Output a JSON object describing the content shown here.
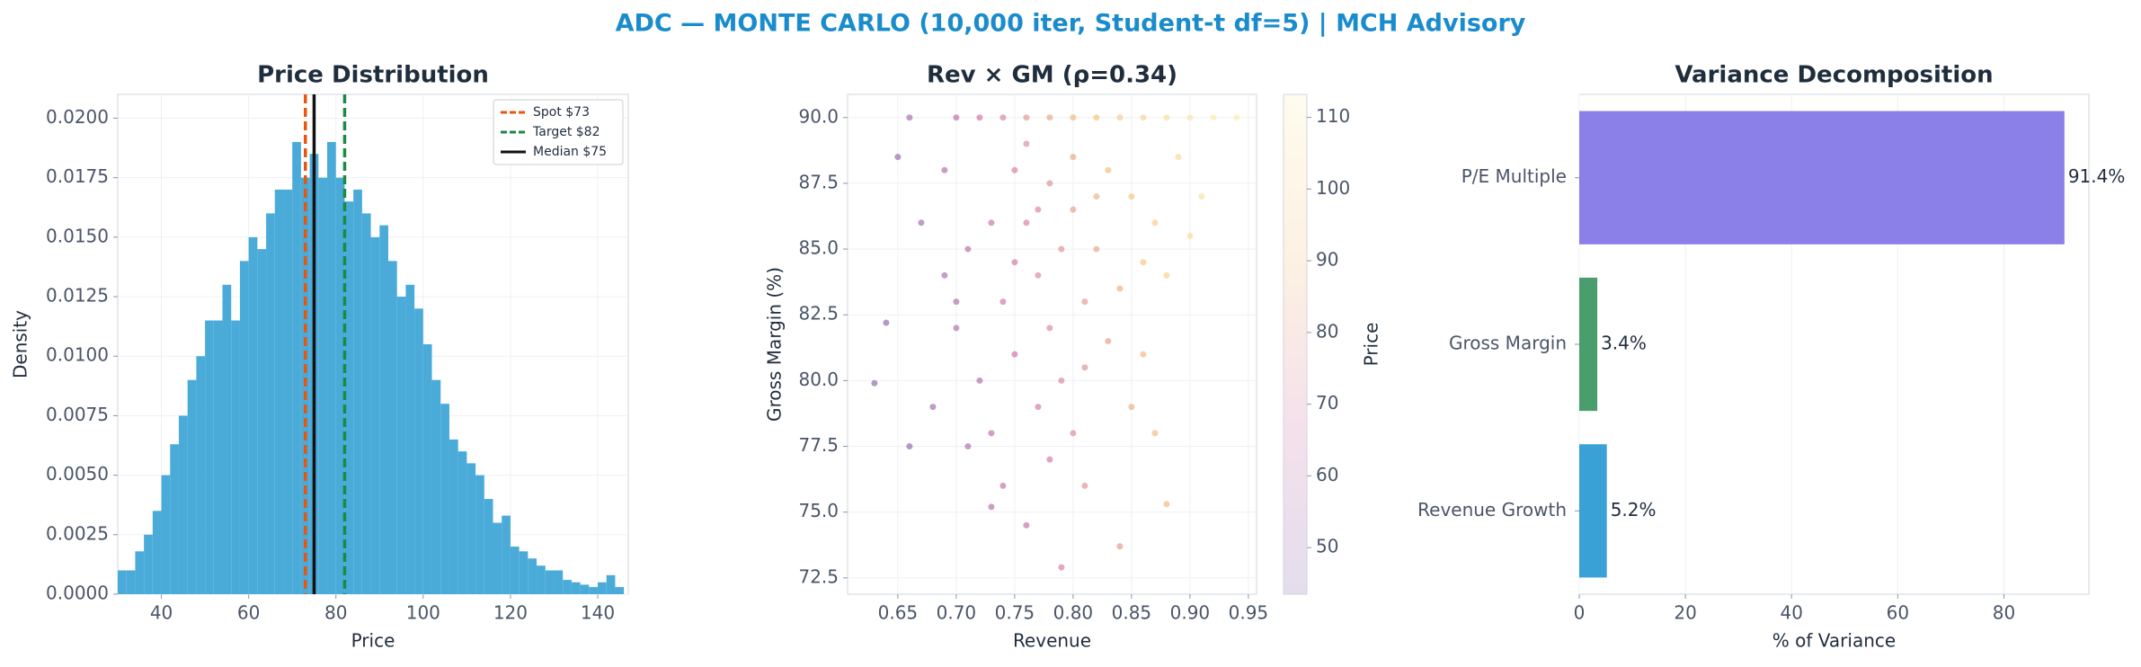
{
  "title": "ADC — MONTE CARLO (10,000 iter, Student-t df=5) | MCH Advisory",
  "chart_data": [
    {
      "type": "histogram",
      "title": "Price Distribution",
      "x_label": "Price",
      "y_label": "Density",
      "color": "#4aabd9",
      "bins": [
        30,
        32,
        34,
        36,
        38,
        40,
        42,
        44,
        46,
        48,
        50,
        52,
        54,
        56,
        58,
        60,
        62,
        64,
        66,
        68,
        70,
        72,
        74,
        76,
        78,
        80,
        82,
        84,
        86,
        88,
        90,
        92,
        94,
        96,
        98,
        100,
        102,
        104,
        106,
        108,
        110,
        112,
        114,
        116,
        118,
        120,
        122,
        124,
        126,
        128,
        130,
        132,
        134,
        136,
        138,
        140,
        142,
        144,
        146
      ],
      "values": [
        0.001,
        0.001,
        0.0018,
        0.0025,
        0.0035,
        0.005,
        0.0063,
        0.0075,
        0.009,
        0.01,
        0.0115,
        0.0115,
        0.013,
        0.0115,
        0.014,
        0.015,
        0.0145,
        0.016,
        0.017,
        0.017,
        0.019,
        0.0175,
        0.0185,
        0.0175,
        0.019,
        0.0175,
        0.0165,
        0.017,
        0.016,
        0.015,
        0.0155,
        0.014,
        0.0125,
        0.013,
        0.012,
        0.0105,
        0.009,
        0.008,
        0.0065,
        0.006,
        0.0055,
        0.005,
        0.004,
        0.003,
        0.0033,
        0.002,
        0.0018,
        0.0015,
        0.0012,
        0.001,
        0.001,
        0.0006,
        0.0005,
        0.0004,
        0.0003,
        0.0005,
        0.0008,
        0.0003
      ],
      "xlim": [
        30,
        147
      ],
      "xticks": [
        40,
        60,
        80,
        100,
        120,
        140
      ],
      "ylim": [
        0,
        0.021
      ],
      "yticks": [
        {
          "value": 0,
          "label": "0.0000"
        },
        0.0025,
        {
          "value": 0.005,
          "label": "0.0050"
        },
        0.0075,
        {
          "value": 0.01,
          "label": "0.0100"
        },
        0.0125,
        {
          "value": 0.015,
          "label": "0.0150"
        },
        0.0175,
        {
          "value": 0.02,
          "label": "0.0200"
        }
      ],
      "grid": true,
      "legend": "upper right",
      "lines": [
        {
          "name": "Spot $73",
          "value": 73,
          "color": "#e8550f",
          "style": "dashed"
        },
        {
          "name": "Target $82",
          "value": 82,
          "color": "#1a8a45",
          "style": "dashed"
        },
        {
          "name": "Median $75",
          "value": 75,
          "color": "#111111",
          "style": "solid"
        }
      ]
    },
    {
      "type": "scatter",
      "title": "Rev × GM (ρ=0.34)",
      "x_label": "Revenue",
      "y_label": "Gross Margin (%)",
      "colorbar_label": "Price",
      "colormap": [
        "#4b1a8a",
        "#b8327a",
        "#f0a03c",
        "#fde68a"
      ],
      "x": [
        0.66,
        0.7,
        0.72,
        0.74,
        0.76,
        0.78,
        0.8,
        0.82,
        0.84,
        0.86,
        0.88,
        0.9,
        0.92,
        0.94,
        0.65,
        0.67,
        0.69,
        0.7,
        0.72,
        0.73,
        0.74,
        0.75,
        0.76,
        0.77,
        0.78,
        0.79,
        0.8,
        0.81,
        0.76,
        0.78,
        0.8,
        0.82,
        0.84,
        0.83,
        0.85,
        0.87,
        0.88,
        0.89,
        0.91,
        0.86,
        0.85,
        0.87,
        0.88,
        0.84,
        0.79,
        0.73,
        0.71,
        0.68,
        0.64,
        0.63,
        0.66,
        0.74,
        0.75,
        0.77,
        0.79,
        0.81,
        0.77,
        0.8,
        0.82,
        0.73,
        0.71,
        0.69,
        0.83,
        0.86,
        0.9,
        0.78,
        0.76,
        0.81,
        0.7,
        0.75
      ],
      "values": [
        90,
        90,
        90,
        90,
        90,
        90,
        90,
        90,
        90,
        90,
        90,
        90,
        90,
        90,
        88.5,
        86,
        84,
        82,
        80,
        78,
        76,
        88,
        86,
        84,
        82,
        80,
        78,
        76,
        89,
        87.5,
        86.5,
        85,
        83.5,
        88,
        87,
        86,
        84,
        88.5,
        87,
        81,
        79,
        78,
        75.3,
        73.7,
        72.9,
        75.2,
        77.5,
        79,
        82.2,
        79.9,
        77.5,
        83,
        81,
        79,
        85,
        83,
        86.5,
        88.5,
        87,
        86,
        85,
        88,
        81.5,
        84.5,
        85.5,
        77,
        74.5,
        80.5,
        83,
        84.5
      ],
      "color_values": [
        55,
        62,
        66,
        72,
        78,
        83,
        88,
        92,
        97,
        101,
        106,
        110,
        112,
        113,
        50,
        52,
        55,
        57,
        58,
        60,
        62,
        70,
        70,
        72,
        72,
        73,
        74,
        76,
        74,
        76,
        80,
        82,
        85,
        88,
        92,
        96,
        97,
        103,
        106,
        88,
        85,
        88,
        88,
        78,
        70,
        58,
        57,
        52,
        47,
        46,
        48,
        66,
        66,
        68,
        76,
        78,
        72,
        82,
        86,
        64,
        60,
        58,
        80,
        92,
        104,
        68,
        62,
        76,
        57,
        68
      ],
      "xlim": [
        0.607,
        0.957
      ],
      "xticks": [
        0.65,
        {
          "value": 0.7,
          "label": "0.70"
        },
        0.75,
        {
          "value": 0.8,
          "label": "0.80"
        },
        0.85,
        {
          "value": 0.9,
          "label": "0.90"
        },
        0.95
      ],
      "ylim": [
        71.88,
        90.88
      ],
      "yticks": [
        72.5,
        {
          "value": 75,
          "label": "75.0"
        },
        77.5,
        {
          "value": 80,
          "label": "80.0"
        },
        82.5,
        {
          "value": 85,
          "label": "85.0"
        },
        87.5,
        {
          "value": 90,
          "label": "90.0"
        }
      ],
      "clim": [
        43.5,
        113.2
      ],
      "cticks": [
        50,
        60,
        70,
        80,
        90,
        100,
        110
      ],
      "grid": true
    },
    {
      "type": "barh",
      "title": "Variance Decomposition",
      "x_label": "% of Variance",
      "categories": [
        "P/E Multiple",
        "Gross Margin",
        "Revenue Growth"
      ],
      "values": [
        91.4,
        3.4,
        5.2
      ],
      "value_labels": [
        "91.4%",
        "3.4%",
        "5.2%"
      ],
      "colors": [
        "#8b7fe8",
        "#4a9e6e",
        "#3aa1d6"
      ],
      "xlim": [
        0,
        96
      ],
      "xticks": [
        0,
        20,
        40,
        60,
        80
      ],
      "grid": true
    }
  ]
}
